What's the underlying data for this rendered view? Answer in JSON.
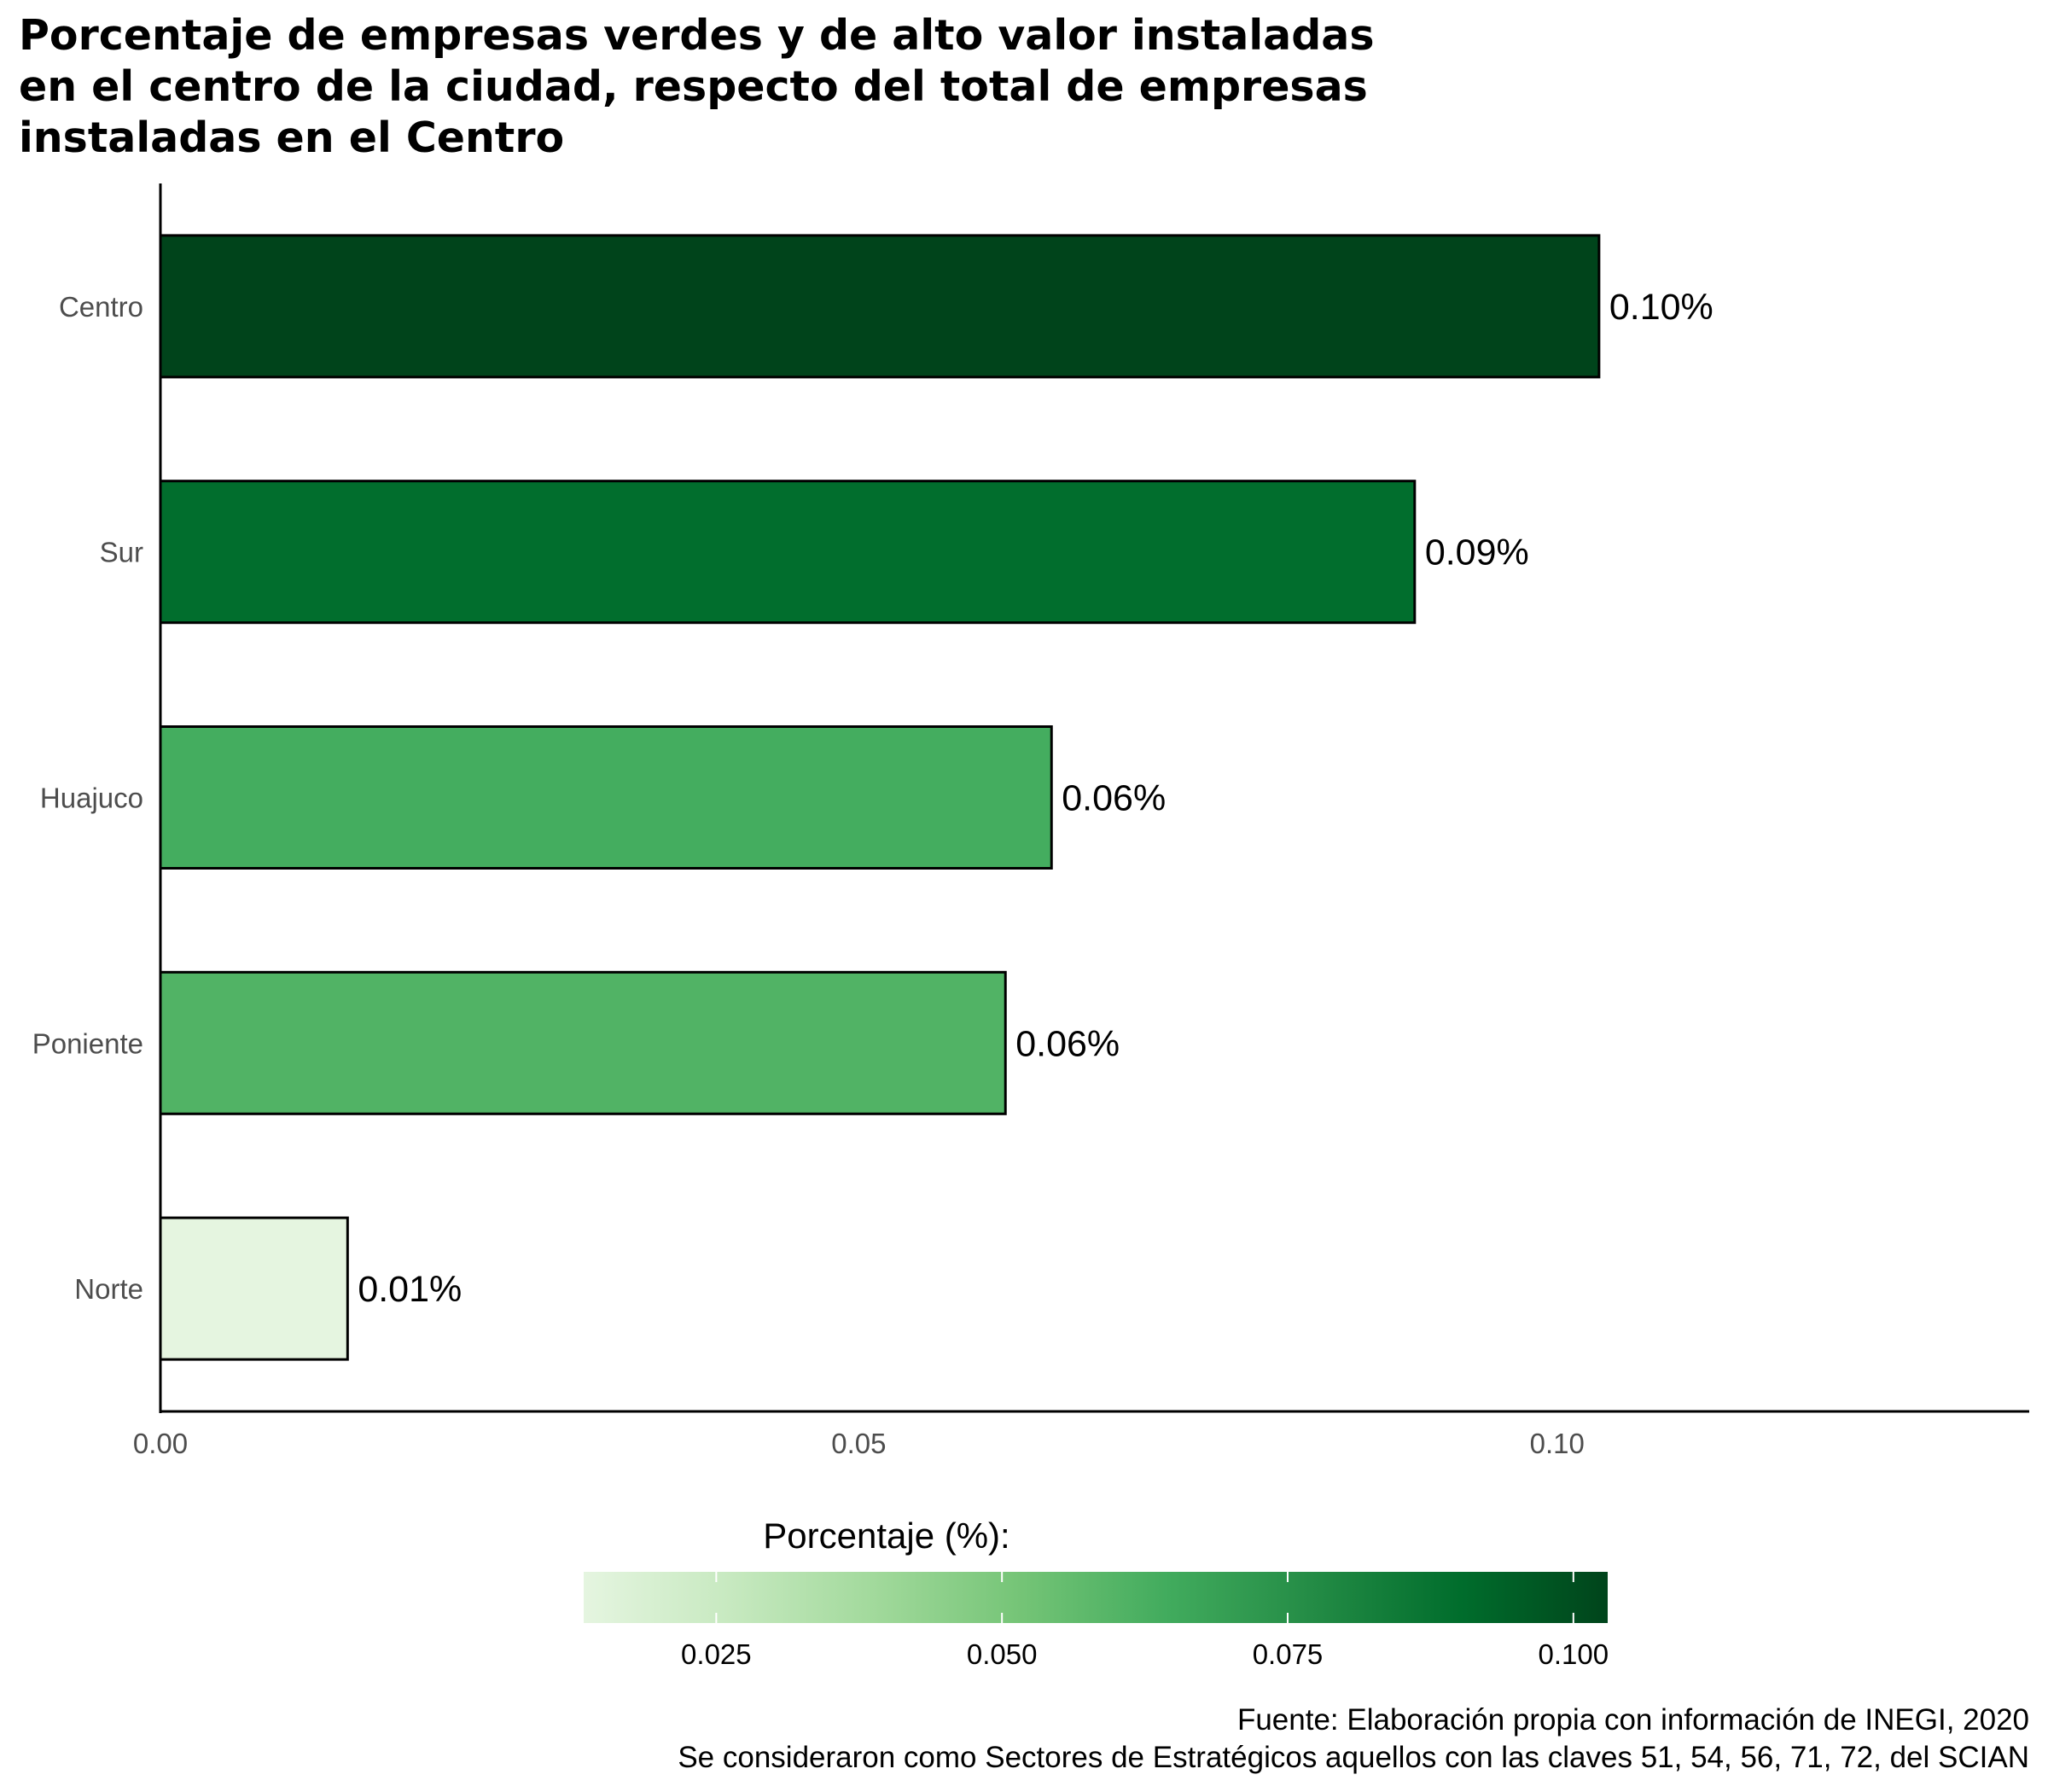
{
  "chart_data": {
    "type": "bar",
    "orientation": "horizontal",
    "title": "Porcentaje de empresas verdes y de alto valor instaladas en el centro de la ciudad, respecto del total de empresas instaladas en el Centro",
    "title_lines": [
      "Porcentaje de empresas verdes y de alto valor instaladas",
      "en el centro de la ciudad, respecto del total de empresas",
      "instaladas en el Centro"
    ],
    "categories": [
      "Centro",
      "Sur",
      "Huajuco",
      "Poniente",
      "Norte"
    ],
    "values": [
      0.103,
      0.0898,
      0.0638,
      0.0605,
      0.0134
    ],
    "data_labels": [
      "0.10%",
      "0.09%",
      "0.06%",
      "0.06%",
      "0.01%"
    ],
    "xlabel": "",
    "ylabel": "",
    "xlim": [
      0,
      0.1338
    ],
    "x_ticks": [
      0.0,
      0.05,
      0.1
    ],
    "x_tick_labels": [
      "0.00",
      "0.05",
      "0.10"
    ],
    "grid": false,
    "legend": {
      "title": "Porcentaje (%):",
      "placement": "bottom",
      "range": [
        0.0134,
        0.103
      ],
      "ticks": [
        0.025,
        0.05,
        0.075,
        0.1
      ],
      "tick_labels": [
        "0.025",
        "0.050",
        "0.075",
        "0.100"
      ],
      "gradient_colors": [
        "#e5f5e0",
        "#c7e9c0",
        "#a1d99b",
        "#74c476",
        "#41ab5d",
        "#238b45",
        "#006d2c",
        "#00441b"
      ]
    },
    "caption_lines": [
      "Fuente: Elaboración propia con información de INEGI, 2020",
      "Se consideraron como Sectores de Estratégicos aquellos con las claves 51, 54, 56, 71, 72, del SCIAN"
    ],
    "colors": {
      "bar_outline": "#000000",
      "axis": "#000000"
    }
  }
}
